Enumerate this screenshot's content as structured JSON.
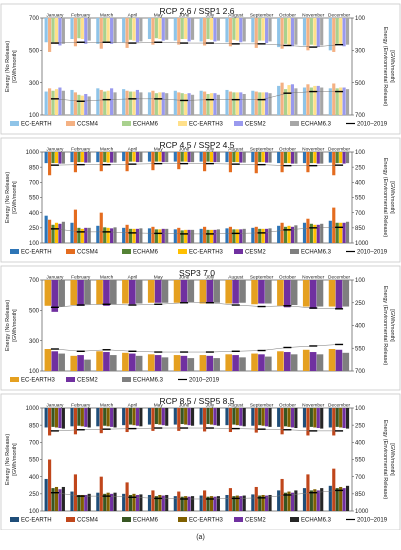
{
  "months": [
    "January",
    "February",
    "March",
    "April",
    "May",
    "June",
    "July",
    "August",
    "September",
    "October",
    "November",
    "December"
  ],
  "models": [
    "EC-EARTH",
    "CCSM4",
    "ECHAM6",
    "EC-EARTH3",
    "CESM2",
    "ECHAM6.3"
  ],
  "ref_label": "2010–2019",
  "left_axis_label": [
    "Energy (No Release)",
    "[GWh/month]"
  ],
  "right_axis_label": [
    "Energy (Environmental Release)",
    "[GWh/month]"
  ],
  "caption": "(a)",
  "chart_data": [
    {
      "type": "bar",
      "title": "RCP 2.6 / SSP1 2.6",
      "colors": [
        "#8fc4e8",
        "#f4b183",
        "#a9d18e",
        "#ffe08a",
        "#9999ee",
        "#a6a6a6"
      ],
      "y_left": {
        "min": 100,
        "max": 700,
        "ticks": [
          100,
          300,
          500,
          700
        ]
      },
      "y_right": {
        "min": 100,
        "max": 700,
        "ticks": [
          100,
          300,
          500,
          700
        ],
        "reversed": true
      },
      "lower": {
        "values": [
          [
            245,
            255,
            265,
            260,
            240,
            250,
            250,
            255,
            250,
            280,
            270,
            265
          ],
          [
            265,
            240,
            255,
            250,
            250,
            240,
            245,
            245,
            245,
            300,
            290,
            295
          ],
          [
            250,
            225,
            245,
            245,
            235,
            235,
            230,
            240,
            240,
            260,
            270,
            265
          ],
          [
            260,
            220,
            250,
            245,
            240,
            230,
            235,
            240,
            240,
            285,
            280,
            270
          ],
          [
            270,
            230,
            265,
            255,
            240,
            235,
            235,
            240,
            240,
            290,
            280,
            270
          ],
          [
            250,
            215,
            240,
            240,
            235,
            225,
            225,
            230,
            235,
            265,
            270,
            260
          ]
        ],
        "ref": [
          200,
          185,
          195,
          200,
          200,
          190,
          195,
          195,
          195,
          235,
          245,
          245
        ]
      },
      "upper": {
        "values": [
          [
            250,
            230,
            260,
            250,
            230,
            240,
            245,
            250,
            250,
            280,
            270,
            300
          ],
          [
            310,
            275,
            290,
            285,
            265,
            265,
            270,
            275,
            285,
            290,
            300,
            310
          ],
          [
            250,
            225,
            245,
            235,
            225,
            230,
            230,
            235,
            240,
            260,
            265,
            260
          ],
          [
            260,
            230,
            250,
            240,
            230,
            230,
            235,
            240,
            240,
            270,
            270,
            265
          ],
          [
            270,
            260,
            260,
            250,
            240,
            245,
            245,
            250,
            255,
            275,
            280,
            275
          ],
          [
            260,
            240,
            255,
            245,
            235,
            235,
            240,
            245,
            245,
            265,
            270,
            265
          ]
        ],
        "ref": [
          255,
          250,
          250,
          255,
          250,
          255,
          255,
          260,
          260,
          270,
          280,
          265
        ]
      }
    },
    {
      "type": "bar",
      "title": "RCP 4.5 / SSP2 4.5",
      "colors": [
        "#2e75b6",
        "#e46c1f",
        "#548235",
        "#ffc000",
        "#7030a0",
        "#7f7f7f"
      ],
      "y_left": {
        "min": 100,
        "max": 1000,
        "ticks": [
          100,
          250,
          400,
          550,
          700,
          850,
          1000
        ]
      },
      "y_right": {
        "min": 100,
        "max": 1000,
        "ticks": [
          100,
          250,
          400,
          550,
          700,
          850,
          1000
        ],
        "reversed": true
      },
      "lower": {
        "values": [
          [
            370,
            300,
            270,
            250,
            245,
            235,
            240,
            245,
            250,
            270,
            300,
            320
          ],
          [
            330,
            430,
            400,
            280,
            260,
            250,
            260,
            260,
            260,
            300,
            340,
            450
          ],
          [
            280,
            250,
            255,
            240,
            235,
            225,
            230,
            235,
            240,
            260,
            290,
            300
          ],
          [
            300,
            240,
            250,
            240,
            235,
            230,
            230,
            235,
            240,
            270,
            280,
            300
          ],
          [
            290,
            250,
            245,
            240,
            240,
            230,
            230,
            235,
            240,
            260,
            280,
            300
          ],
          [
            310,
            250,
            255,
            245,
            240,
            230,
            235,
            240,
            245,
            275,
            290,
            310
          ]
        ],
        "ref": [
          240,
          210,
          210,
          200,
          195,
          190,
          190,
          195,
          200,
          230,
          250,
          255
        ]
      },
      "upper": {
        "values": [
          [
            210,
            200,
            200,
            190,
            195,
            195,
            195,
            200,
            200,
            210,
            210,
            205
          ],
          [
            330,
            300,
            290,
            290,
            280,
            270,
            290,
            300,
            310,
            300,
            300,
            330
          ],
          [
            210,
            200,
            200,
            195,
            195,
            195,
            195,
            200,
            200,
            210,
            210,
            210
          ],
          [
            210,
            200,
            205,
            195,
            195,
            195,
            200,
            200,
            200,
            210,
            210,
            210
          ],
          [
            215,
            205,
            205,
            200,
            200,
            200,
            200,
            205,
            205,
            215,
            215,
            215
          ],
          [
            215,
            205,
            205,
            200,
            200,
            200,
            200,
            205,
            205,
            215,
            215,
            210
          ]
        ],
        "ref": [
          230,
          225,
          225,
          220,
          215,
          215,
          215,
          220,
          225,
          235,
          235,
          230
        ]
      }
    },
    {
      "type": "bar",
      "title": "SSP3 7.0",
      "colors": [
        "#e5a020",
        "#7030a0",
        "#7f7f7f"
      ],
      "y_left": {
        "min": 100,
        "max": 700,
        "ticks": [
          100,
          300,
          500,
          700
        ]
      },
      "y_right": {
        "min": 100,
        "max": 700,
        "ticks": [
          100,
          250,
          400,
          550,
          700
        ],
        "reversed": true
      },
      "lower": {
        "values": [
          [
            245,
            200,
            230,
            220,
            210,
            205,
            205,
            210,
            215,
            230,
            240,
            245
          ],
          [
            230,
            205,
            225,
            215,
            205,
            200,
            200,
            205,
            210,
            225,
            225,
            240
          ],
          [
            215,
            175,
            205,
            200,
            190,
            185,
            185,
            190,
            195,
            210,
            210,
            220
          ]
        ],
        "ref": [
          245,
          230,
          240,
          230,
          225,
          225,
          225,
          230,
          235,
          255,
          265,
          275
        ]
      },
      "upper": {
        "values": [
          [
            270,
            265,
            260,
            255,
            250,
            250,
            255,
            255,
            260,
            270,
            275,
            275
          ],
          [
            310,
            270,
            270,
            260,
            250,
            245,
            250,
            255,
            255,
            280,
            290,
            290
          ],
          [
            275,
            260,
            260,
            255,
            250,
            245,
            250,
            250,
            255,
            265,
            275,
            275
          ]
        ],
        "ref": [
          280,
          265,
          260,
          265,
          260,
          250,
          250,
          265,
          275,
          270,
          285,
          290
        ]
      }
    },
    {
      "type": "bar",
      "title": "RCP 8.5 / SSP5 8.5",
      "colors": [
        "#1f4e79",
        "#c0461b",
        "#375623",
        "#7f6000",
        "#7030a0",
        "#262626"
      ],
      "y_left": {
        "min": 100,
        "max": 1000,
        "ticks": [
          100,
          250,
          400,
          550,
          700,
          850,
          1000
        ]
      },
      "y_right": {
        "min": 100,
        "max": 1000,
        "ticks": [
          100,
          250,
          400,
          550,
          700,
          850,
          1000
        ],
        "reversed": true
      },
      "lower": {
        "values": [
          [
            380,
            270,
            260,
            250,
            240,
            230,
            235,
            240,
            245,
            280,
            300,
            320
          ],
          [
            550,
            420,
            400,
            350,
            280,
            270,
            280,
            300,
            310,
            380,
            420,
            470
          ],
          [
            300,
            240,
            250,
            240,
            230,
            225,
            225,
            230,
            235,
            260,
            280,
            300
          ],
          [
            310,
            240,
            260,
            250,
            240,
            230,
            230,
            235,
            240,
            270,
            290,
            310
          ],
          [
            290,
            240,
            250,
            240,
            235,
            225,
            225,
            230,
            235,
            260,
            280,
            300
          ],
          [
            310,
            250,
            260,
            245,
            240,
            230,
            230,
            235,
            240,
            280,
            300,
            320
          ]
        ],
        "ref": [
          260,
          230,
          230,
          220,
          210,
          205,
          205,
          210,
          215,
          240,
          260,
          280
        ]
      },
      "upper": {
        "values": [
          [
            270,
            260,
            260,
            250,
            245,
            245,
            245,
            250,
            255,
            265,
            270,
            270
          ],
          [
            340,
            330,
            320,
            310,
            300,
            300,
            305,
            310,
            315,
            330,
            340,
            340
          ],
          [
            265,
            255,
            255,
            245,
            240,
            240,
            240,
            245,
            250,
            260,
            265,
            265
          ],
          [
            270,
            260,
            260,
            250,
            245,
            245,
            245,
            250,
            255,
            265,
            270,
            270
          ],
          [
            275,
            265,
            265,
            255,
            250,
            250,
            250,
            255,
            260,
            270,
            275,
            275
          ],
          [
            280,
            270,
            270,
            260,
            255,
            255,
            255,
            260,
            265,
            275,
            280,
            280
          ]
        ],
        "ref": [
          300,
          290,
          285,
          280,
          275,
          275,
          275,
          280,
          285,
          290,
          300,
          300
        ]
      }
    }
  ]
}
